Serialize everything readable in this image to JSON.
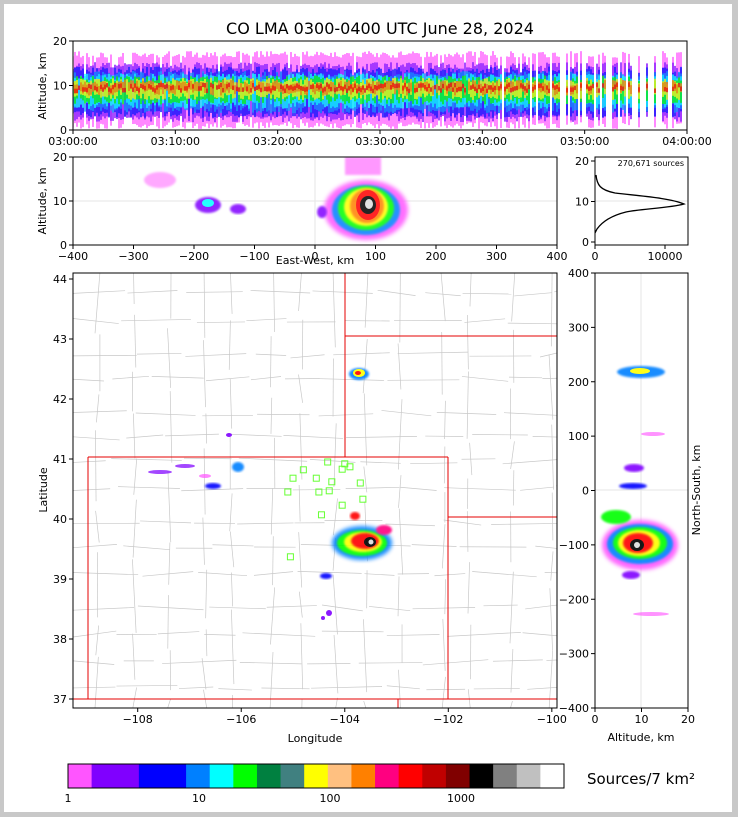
{
  "chart_data": {
    "type": "heatmap",
    "title": "CO LMA 0300-0400 UTC June 28, 2024",
    "panels": {
      "time_height": {
        "ylabel": "Altitude, km",
        "ylim": [
          0,
          20
        ],
        "y_ticks": [
          "0",
          "10",
          "20"
        ],
        "x_ticks": [
          "03:00:00",
          "03:10:00",
          "03:20:00",
          "03:30:00",
          "03:40:00",
          "03:50:00",
          "04:00:00"
        ]
      },
      "east_west": {
        "xlabel": "East-West, km",
        "ylabel": "Altitude, km",
        "xlim": [
          -400,
          400
        ],
        "ylim": [
          0,
          20
        ],
        "x_ticks": [
          "−400",
          "−300",
          "−200",
          "−100",
          "0",
          "100",
          "200",
          "300",
          "400"
        ],
        "y_ticks": [
          "0",
          "10",
          "20"
        ]
      },
      "histogram": {
        "annotation": "270,671 sources",
        "x_ticks": [
          "0",
          "10000"
        ],
        "y_ticks": [
          "0",
          "10",
          "20"
        ]
      },
      "plan_view": {
        "xlabel": "Longitude",
        "ylabel": "Latitude",
        "xlim": [
          -109.25,
          -99.9
        ],
        "ylim": [
          36.85,
          44.1
        ],
        "x_ticks": [
          "−108",
          "−106",
          "−104",
          "−102",
          "−100"
        ],
        "y_ticks": [
          "37",
          "38",
          "39",
          "40",
          "41",
          "42",
          "43",
          "44"
        ],
        "stations_lon_lat": [
          [
            -104.33,
            40.95
          ],
          [
            -104.0,
            40.92
          ],
          [
            -103.9,
            40.87
          ],
          [
            -104.05,
            40.83
          ],
          [
            -104.8,
            40.82
          ],
          [
            -105.0,
            40.68
          ],
          [
            -104.55,
            40.68
          ],
          [
            -104.25,
            40.62
          ],
          [
            -103.7,
            40.6
          ],
          [
            -105.1,
            40.45
          ],
          [
            -104.5,
            40.45
          ],
          [
            -104.3,
            40.47
          ],
          [
            -103.65,
            40.33
          ],
          [
            -104.05,
            40.23
          ],
          [
            -104.45,
            40.07
          ],
          [
            -105.05,
            39.37
          ]
        ]
      },
      "north_south": {
        "xlabel": "Altitude, km",
        "ylabel": "North-South, km",
        "xlim": [
          0,
          20
        ],
        "ylim": [
          -400,
          400
        ],
        "x_ticks": [
          "0",
          "10",
          "20"
        ],
        "y_ticks": [
          "−400",
          "−300",
          "−200",
          "−100",
          "0",
          "100",
          "200",
          "300",
          "400"
        ]
      }
    },
    "colorbar": {
      "label": "Sources/7 km²",
      "tick_labels": [
        "1",
        "10",
        "100",
        "1000"
      ],
      "colors": [
        "#ff55ff",
        "#8000ff",
        "#8000ff",
        "#0000ff",
        "#0000ff",
        "#0080ff",
        "#00ffff",
        "#00ff00",
        "#008040",
        "#408080",
        "#ffff00",
        "#ffc080",
        "#ff8000",
        "#ff0080",
        "#ff0000",
        "#c00000",
        "#800000",
        "#000000",
        "#808080",
        "#c0c0c0",
        "#ffffff"
      ]
    }
  }
}
